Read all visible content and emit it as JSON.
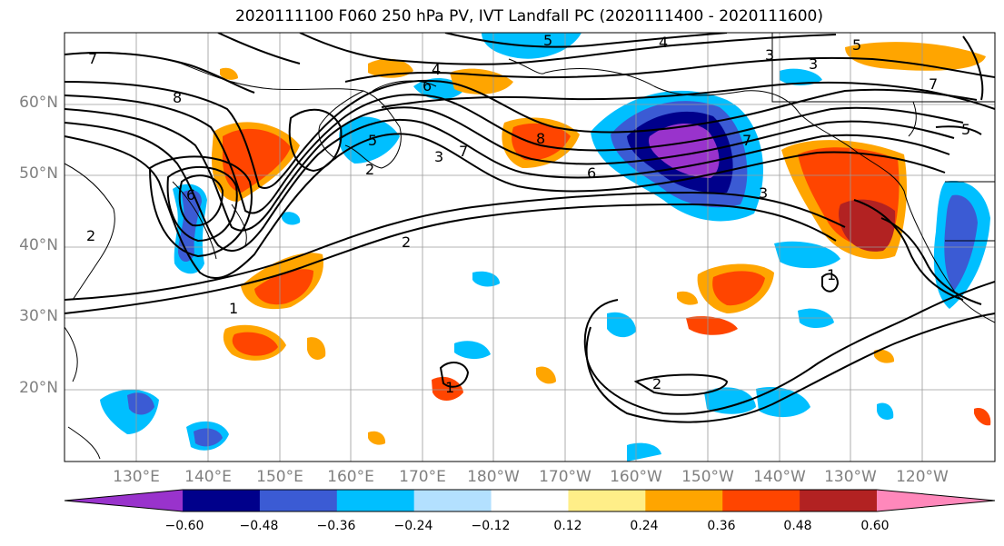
{
  "title": "2020111100 F060 250 hPa PV, IVT Landfall PC (2020111400 - 2020111600)",
  "map": {
    "lat_labels": [
      "60°N",
      "50°N",
      "40°N",
      "30°N",
      "20°N"
    ],
    "lon_labels": [
      "130°E",
      "140°E",
      "150°E",
      "160°E",
      "170°E",
      "180°W",
      "170°W",
      "160°W",
      "150°W",
      "140°W",
      "130°W",
      "120°W"
    ],
    "contour_labels": [
      "7",
      "8",
      "6",
      "5",
      "4",
      "3",
      "2",
      "1",
      "7",
      "8",
      "6",
      "5",
      "4",
      "3",
      "2",
      "7",
      "6",
      "5",
      "3",
      "2",
      "1",
      "2",
      "1",
      "7",
      "5",
      "3"
    ],
    "colors": {
      "coastline": "#000000",
      "grid": "#9a9a9a",
      "contour": "#000000"
    }
  },
  "colorbar": {
    "tick_labels": [
      "−0.60",
      "−0.48",
      "−0.36",
      "−0.24",
      "−0.12",
      "0.12",
      "0.24",
      "0.36",
      "0.48",
      "0.60"
    ],
    "bins": [
      {
        "color": "#9933cc"
      },
      {
        "color": "#00008b"
      },
      {
        "color": "#3b5bd4"
      },
      {
        "color": "#00bfff"
      },
      {
        "color": "#b3e0ff"
      },
      {
        "color": "#ffffff"
      },
      {
        "color": "#ffee88"
      },
      {
        "color": "#ffa500"
      },
      {
        "color": "#ff4500"
      },
      {
        "color": "#b22222"
      },
      {
        "color": "#ff88bb"
      }
    ],
    "extend": "both"
  }
}
